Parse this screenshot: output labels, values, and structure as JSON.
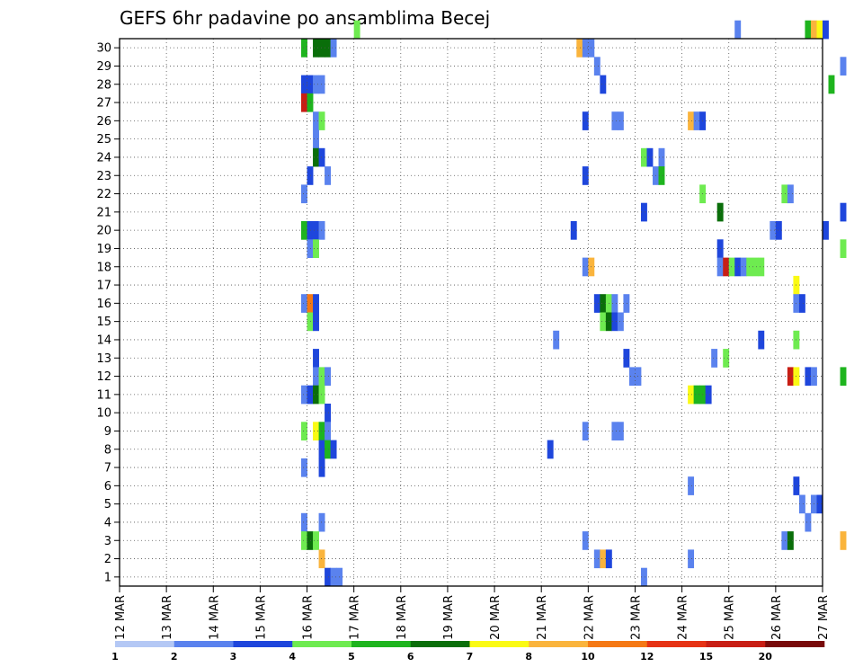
{
  "chart_data": {
    "type": "heatmap",
    "title": "GEFS 6hr padavine po ansamblima Becej",
    "x_tick_labels": [
      "12 MAR",
      "13 MAR",
      "14 MAR",
      "15 MAR",
      "16 MAR",
      "17 MAR",
      "18 MAR",
      "19 MAR",
      "20 MAR",
      "21 MAR",
      "22 MAR",
      "23 MAR",
      "24 MAR",
      "25 MAR",
      "26 MAR",
      "27 MAR"
    ],
    "y_tick_labels": [
      "1",
      "2",
      "3",
      "4",
      "5",
      "6",
      "7",
      "8",
      "9",
      "10",
      "11",
      "12",
      "13",
      "14",
      "15",
      "16",
      "17",
      "18",
      "19",
      "20",
      "21",
      "22",
      "23",
      "24",
      "25",
      "26",
      "27",
      "28",
      "29",
      "30"
    ],
    "grid": true,
    "legend_position": "bottom",
    "legend": [
      {
        "label": "1",
        "color": "#b4c8f5"
      },
      {
        "label": "2",
        "color": "#5a82ee"
      },
      {
        "label": "3",
        "color": "#1e46dc"
      },
      {
        "label": "4",
        "color": "#6eeb50"
      },
      {
        "label": "5",
        "color": "#1eb41e"
      },
      {
        "label": "6",
        "color": "#0a6e0a"
      },
      {
        "label": "7",
        "color": "#fafa14"
      },
      {
        "label": "8",
        "color": "#fab43c"
      },
      {
        "label": "10",
        "color": "#f57814"
      },
      {
        "label": "12",
        "color": "#e63214"
      },
      {
        "label": "15",
        "color": "#c81e14"
      },
      {
        "label": "20",
        "color": "#780a0a"
      }
    ],
    "cells": [
      {
        "m": 30,
        "t": 40,
        "c": 3
      },
      {
        "m": 30,
        "t": 105,
        "c": 1
      },
      {
        "m": 30,
        "t": 117,
        "c": 4
      },
      {
        "m": 30,
        "t": 118,
        "c": 7
      },
      {
        "m": 30,
        "t": 119,
        "c": 6
      },
      {
        "m": 30,
        "t": 120,
        "c": 2
      },
      {
        "m": 29,
        "t": 31,
        "c": 4
      },
      {
        "m": 29,
        "t": 33,
        "c": 5
      },
      {
        "m": 29,
        "t": 34,
        "c": 5
      },
      {
        "m": 29,
        "t": 35,
        "c": 5
      },
      {
        "m": 29,
        "t": 36,
        "c": 1
      },
      {
        "m": 29,
        "t": 78,
        "c": 7
      },
      {
        "m": 29,
        "t": 79,
        "c": 1
      },
      {
        "m": 29,
        "t": 80,
        "c": 1
      },
      {
        "m": 28,
        "t": 81,
        "c": 1
      },
      {
        "m": 28,
        "t": 123,
        "c": 1
      },
      {
        "m": 27,
        "t": 31,
        "c": 2
      },
      {
        "m": 27,
        "t": 32,
        "c": 2
      },
      {
        "m": 27,
        "t": 33,
        "c": 1
      },
      {
        "m": 27,
        "t": 34,
        "c": 1
      },
      {
        "m": 27,
        "t": 82,
        "c": 2
      },
      {
        "m": 27,
        "t": 121,
        "c": 4
      },
      {
        "m": 26,
        "t": 31,
        "c": 10
      },
      {
        "m": 26,
        "t": 32,
        "c": 4
      },
      {
        "m": 25,
        "t": 33,
        "c": 1
      },
      {
        "m": 25,
        "t": 34,
        "c": 3
      },
      {
        "m": 25,
        "t": 79,
        "c": 2
      },
      {
        "m": 25,
        "t": 84,
        "c": 1
      },
      {
        "m": 25,
        "t": 85,
        "c": 1
      },
      {
        "m": 25,
        "t": 97,
        "c": 7
      },
      {
        "m": 25,
        "t": 98,
        "c": 1
      },
      {
        "m": 25,
        "t": 99,
        "c": 2
      },
      {
        "m": 24,
        "t": 33,
        "c": 1
      },
      {
        "m": 23,
        "t": 33,
        "c": 5
      },
      {
        "m": 23,
        "t": 34,
        "c": 2
      },
      {
        "m": 23,
        "t": 89,
        "c": 3
      },
      {
        "m": 23,
        "t": 90,
        "c": 2
      },
      {
        "m": 23,
        "t": 92,
        "c": 1
      },
      {
        "m": 22,
        "t": 32,
        "c": 2
      },
      {
        "m": 22,
        "t": 35,
        "c": 1
      },
      {
        "m": 22,
        "t": 79,
        "c": 2
      },
      {
        "m": 22,
        "t": 91,
        "c": 1
      },
      {
        "m": 22,
        "t": 92,
        "c": 4
      },
      {
        "m": 21,
        "t": 31,
        "c": 1
      },
      {
        "m": 21,
        "t": 99,
        "c": 3
      },
      {
        "m": 21,
        "t": 113,
        "c": 3
      },
      {
        "m": 21,
        "t": 114,
        "c": 1
      },
      {
        "m": 20,
        "t": 89,
        "c": 2
      },
      {
        "m": 20,
        "t": 102,
        "c": 5
      },
      {
        "m": 20,
        "t": 123,
        "c": 2
      },
      {
        "m": 19,
        "t": 31,
        "c": 4
      },
      {
        "m": 19,
        "t": 32,
        "c": 2
      },
      {
        "m": 19,
        "t": 33,
        "c": 2
      },
      {
        "m": 19,
        "t": 34,
        "c": 1
      },
      {
        "m": 19,
        "t": 77,
        "c": 2
      },
      {
        "m": 19,
        "t": 111,
        "c": 1
      },
      {
        "m": 19,
        "t": 112,
        "c": 2
      },
      {
        "m": 19,
        "t": 120,
        "c": 2
      },
      {
        "m": 18,
        "t": 32,
        "c": 1
      },
      {
        "m": 18,
        "t": 33,
        "c": 3
      },
      {
        "m": 18,
        "t": 102,
        "c": 2
      },
      {
        "m": 18,
        "t": 123,
        "c": 3
      },
      {
        "m": 17,
        "t": 79,
        "c": 1
      },
      {
        "m": 17,
        "t": 80,
        "c": 7
      },
      {
        "m": 17,
        "t": 102,
        "c": 1
      },
      {
        "m": 17,
        "t": 103,
        "c": 10
      },
      {
        "m": 17,
        "t": 104,
        "c": 3
      },
      {
        "m": 17,
        "t": 105,
        "c": 2
      },
      {
        "m": 17,
        "t": 106,
        "c": 1
      },
      {
        "m": 17,
        "t": 107,
        "c": 3
      },
      {
        "m": 17,
        "t": 108,
        "c": 3
      },
      {
        "m": 17,
        "t": 109,
        "c": 3
      },
      {
        "m": 16,
        "t": 115,
        "c": 6
      },
      {
        "m": 15,
        "t": 31,
        "c": 1
      },
      {
        "m": 15,
        "t": 32,
        "c": 8
      },
      {
        "m": 15,
        "t": 33,
        "c": 2
      },
      {
        "m": 15,
        "t": 81,
        "c": 2
      },
      {
        "m": 15,
        "t": 82,
        "c": 5
      },
      {
        "m": 15,
        "t": 83,
        "c": 3
      },
      {
        "m": 15,
        "t": 84,
        "c": 1
      },
      {
        "m": 15,
        "t": 86,
        "c": 1
      },
      {
        "m": 15,
        "t": 115,
        "c": 1
      },
      {
        "m": 15,
        "t": 116,
        "c": 2
      },
      {
        "m": 14,
        "t": 32,
        "c": 3
      },
      {
        "m": 14,
        "t": 33,
        "c": 2
      },
      {
        "m": 14,
        "t": 82,
        "c": 3
      },
      {
        "m": 14,
        "t": 83,
        "c": 5
      },
      {
        "m": 14,
        "t": 84,
        "c": 2
      },
      {
        "m": 14,
        "t": 85,
        "c": 1
      },
      {
        "m": 13,
        "t": 74,
        "c": 1
      },
      {
        "m": 13,
        "t": 109,
        "c": 2
      },
      {
        "m": 13,
        "t": 115,
        "c": 3
      },
      {
        "m": 12,
        "t": 33,
        "c": 2
      },
      {
        "m": 12,
        "t": 86,
        "c": 2
      },
      {
        "m": 12,
        "t": 101,
        "c": 1
      },
      {
        "m": 12,
        "t": 103,
        "c": 3
      },
      {
        "m": 11,
        "t": 33,
        "c": 1
      },
      {
        "m": 11,
        "t": 34,
        "c": 3
      },
      {
        "m": 11,
        "t": 35,
        "c": 1
      },
      {
        "m": 11,
        "t": 87,
        "c": 1
      },
      {
        "m": 11,
        "t": 88,
        "c": 1
      },
      {
        "m": 11,
        "t": 114,
        "c": 10
      },
      {
        "m": 11,
        "t": 115,
        "c": 6
      },
      {
        "m": 11,
        "t": 117,
        "c": 2
      },
      {
        "m": 11,
        "t": 118,
        "c": 1
      },
      {
        "m": 11,
        "t": 123,
        "c": 4
      },
      {
        "m": 10,
        "t": 31,
        "c": 1
      },
      {
        "m": 10,
        "t": 32,
        "c": 2
      },
      {
        "m": 10,
        "t": 33,
        "c": 5
      },
      {
        "m": 10,
        "t": 34,
        "c": 3
      },
      {
        "m": 10,
        "t": 97,
        "c": 6
      },
      {
        "m": 10,
        "t": 98,
        "c": 4
      },
      {
        "m": 10,
        "t": 99,
        "c": 4
      },
      {
        "m": 10,
        "t": 100,
        "c": 2
      },
      {
        "m": 9,
        "t": 35,
        "c": 2
      },
      {
        "m": 8,
        "t": 31,
        "c": 3
      },
      {
        "m": 8,
        "t": 33,
        "c": 6
      },
      {
        "m": 8,
        "t": 34,
        "c": 4
      },
      {
        "m": 8,
        "t": 35,
        "c": 1
      },
      {
        "m": 8,
        "t": 79,
        "c": 1
      },
      {
        "m": 8,
        "t": 84,
        "c": 1
      },
      {
        "m": 8,
        "t": 85,
        "c": 1
      },
      {
        "m": 7,
        "t": 34,
        "c": 2
      },
      {
        "m": 7,
        "t": 35,
        "c": 4
      },
      {
        "m": 7,
        "t": 36,
        "c": 2
      },
      {
        "m": 7,
        "t": 73,
        "c": 2
      },
      {
        "m": 6,
        "t": 31,
        "c": 1
      },
      {
        "m": 6,
        "t": 34,
        "c": 2
      },
      {
        "m": 5,
        "t": 97,
        "c": 1
      },
      {
        "m": 5,
        "t": 115,
        "c": 2
      },
      {
        "m": 4,
        "t": 116,
        "c": 1
      },
      {
        "m": 4,
        "t": 118,
        "c": 1
      },
      {
        "m": 4,
        "t": 119,
        "c": 2
      },
      {
        "m": 3,
        "t": 31,
        "c": 1
      },
      {
        "m": 3,
        "t": 34,
        "c": 1
      },
      {
        "m": 3,
        "t": 117,
        "c": 1
      },
      {
        "m": 2,
        "t": 31,
        "c": 3
      },
      {
        "m": 2,
        "t": 32,
        "c": 5
      },
      {
        "m": 2,
        "t": 33,
        "c": 3
      },
      {
        "m": 2,
        "t": 79,
        "c": 1
      },
      {
        "m": 2,
        "t": 113,
        "c": 1
      },
      {
        "m": 2,
        "t": 114,
        "c": 5
      },
      {
        "m": 2,
        "t": 123,
        "c": 7
      },
      {
        "m": 1,
        "t": 34,
        "c": 7
      },
      {
        "m": 1,
        "t": 81,
        "c": 1
      },
      {
        "m": 1,
        "t": 82,
        "c": 7
      },
      {
        "m": 1,
        "t": 83,
        "c": 2
      },
      {
        "m": 1,
        "t": 97,
        "c": 1
      },
      {
        "m": 0,
        "t": 35,
        "c": 2
      },
      {
        "m": 0,
        "t": 36,
        "c": 1
      },
      {
        "m": 0,
        "t": 37,
        "c": 1
      },
      {
        "m": 0,
        "t": 89,
        "c": 1
      }
    ]
  }
}
